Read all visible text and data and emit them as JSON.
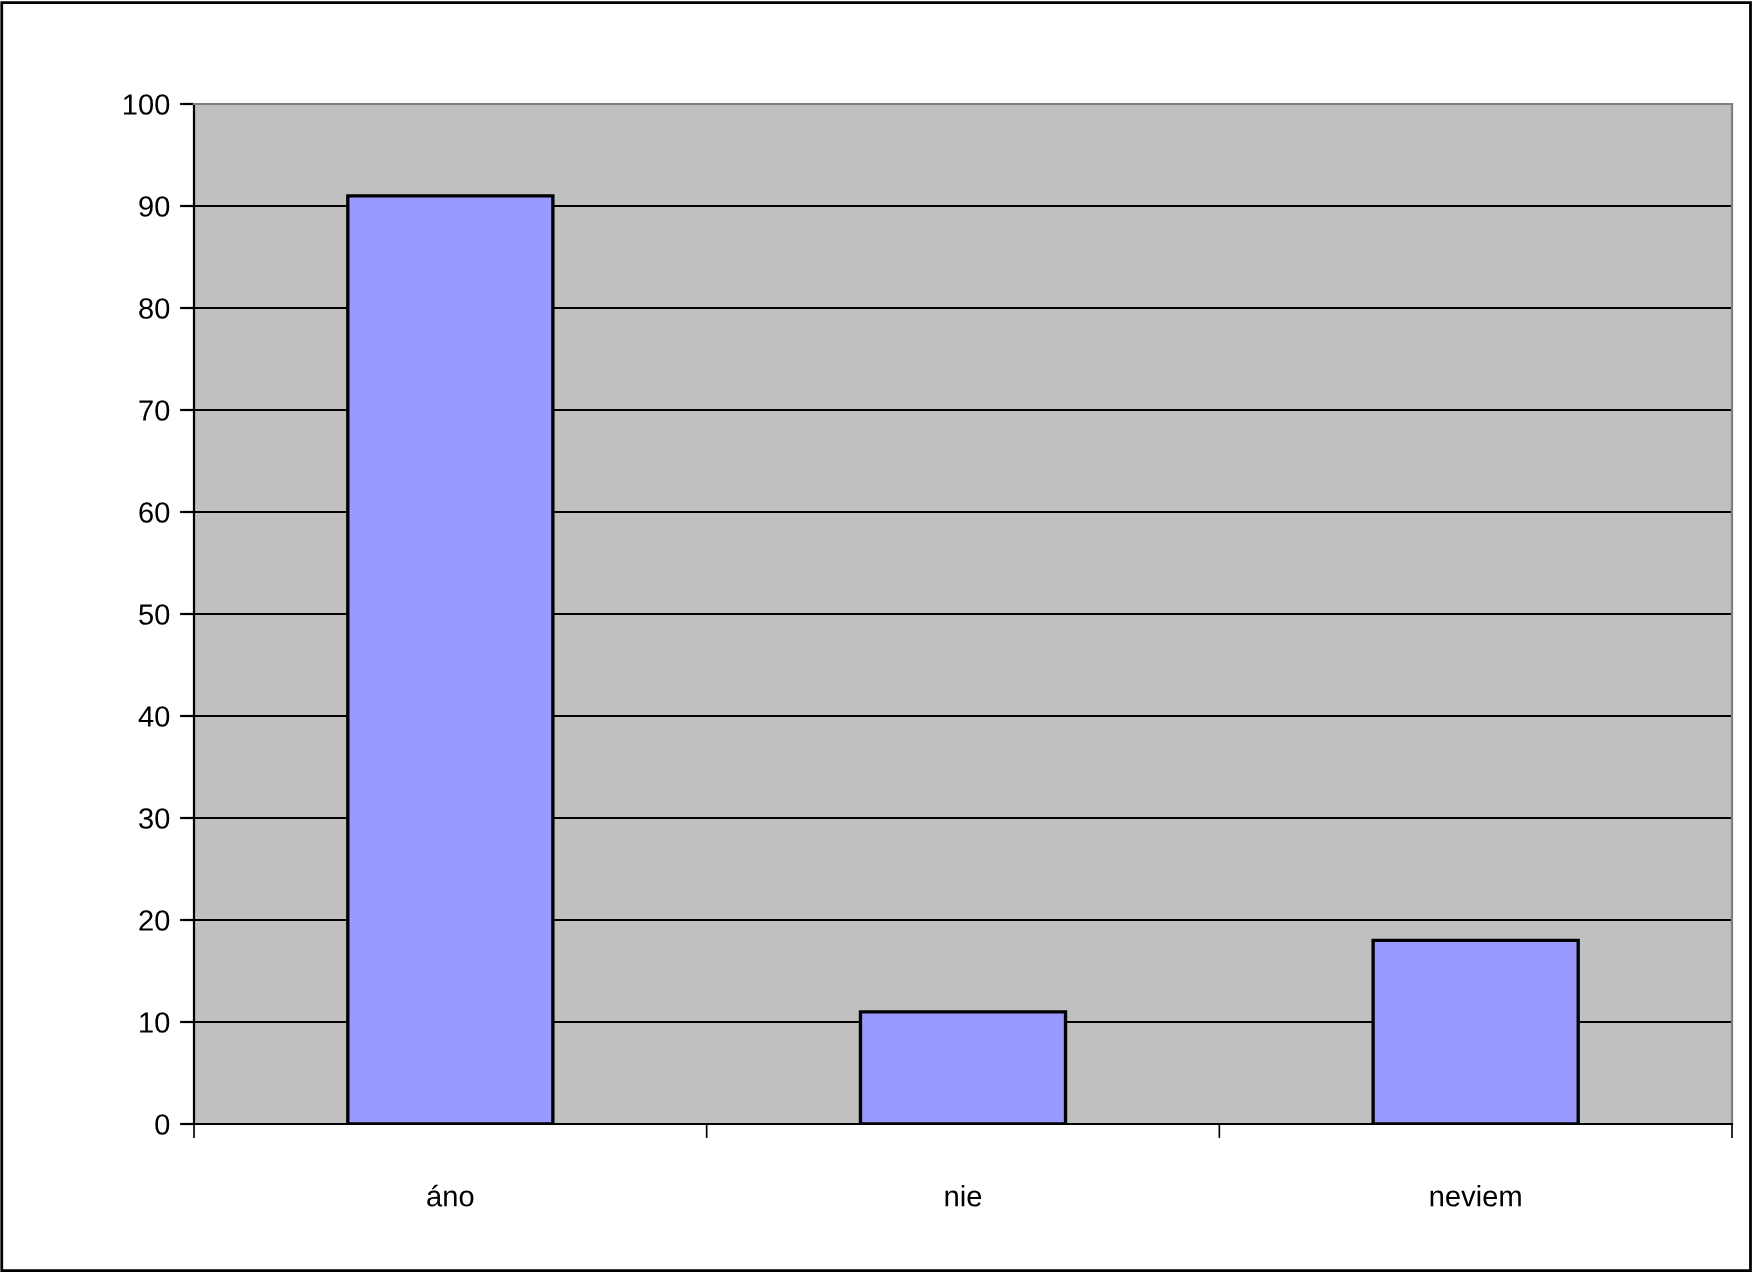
{
  "chart_data": {
    "type": "bar",
    "categories": [
      "áno",
      "nie",
      "neviem"
    ],
    "values": [
      91,
      11,
      18
    ],
    "color": "#9999ff",
    "ylim": [
      0,
      100
    ],
    "yticks": [
      0,
      10,
      20,
      30,
      40,
      50,
      60,
      70,
      80,
      90,
      100
    ],
    "grid": "y"
  }
}
